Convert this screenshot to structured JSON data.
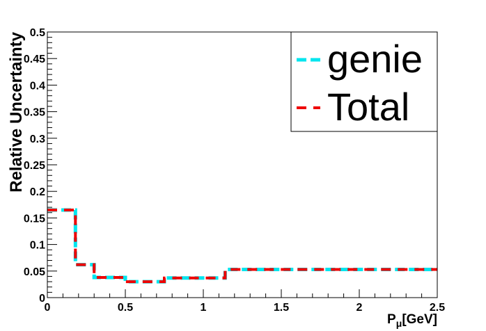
{
  "chart_data": {
    "type": "line",
    "style": "step",
    "title": "",
    "xlabel_main": "P",
    "xlabel_sub": "μ",
    "xlabel_unit": "[GeV]",
    "ylabel": "Relative Uncertainty",
    "xlim": [
      0,
      2.5
    ],
    "ylim": [
      0,
      0.5
    ],
    "x_ticks": [
      "0",
      "0.5",
      "1",
      "1.5",
      "2",
      "2.5"
    ],
    "y_ticks": [
      "0",
      "0.05",
      "0.1",
      "0.15",
      "0.2",
      "0.25",
      "0.3",
      "0.35",
      "0.4",
      "0.45",
      "0.5"
    ],
    "grid": false,
    "legend_position": "top-right",
    "bin_edges": [
      0,
      0.18,
      0.3,
      0.5,
      0.75,
      1.14,
      2.5
    ],
    "series": [
      {
        "name": "genie",
        "color": "#00e5ee",
        "dash": "long-dash",
        "values": [
          0.165,
          0.062,
          0.038,
          0.03,
          0.037,
          0.053
        ]
      },
      {
        "name": "Total",
        "color": "#ee0000",
        "dash": "short-dash",
        "values": [
          0.165,
          0.062,
          0.038,
          0.03,
          0.037,
          0.053
        ]
      }
    ]
  }
}
